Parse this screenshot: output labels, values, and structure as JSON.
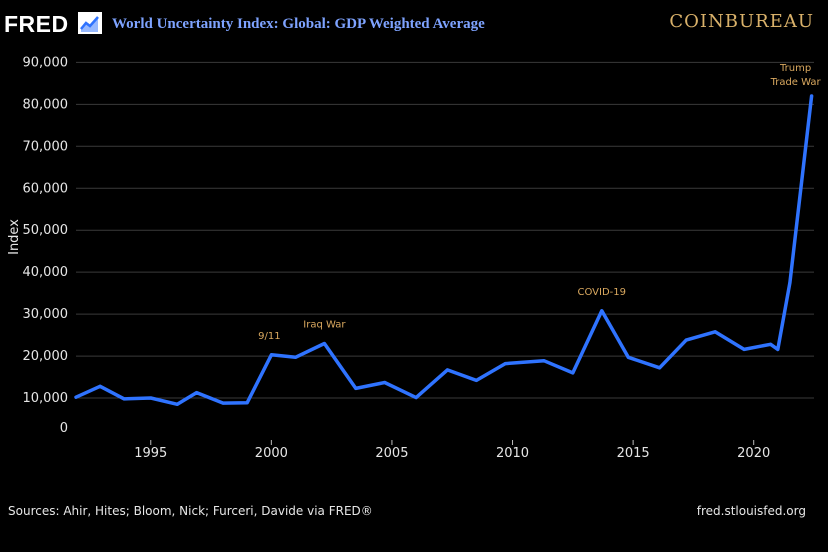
{
  "header": {
    "logo": "FRED",
    "logo_icon": "chart-trend-icon",
    "brand": "COINBUREAU"
  },
  "colors": {
    "background": "#000000",
    "line": "#2f73ff",
    "title": "#7ea3ff",
    "annotation": "#d9a85f",
    "grid": "#3a3a3a"
  },
  "footer": {
    "sources": "Sources: Ahir, Hites; Bloom, Nick; Furceri, Davide via FRED®",
    "url": "fred.stlouisfed.org"
  },
  "chart_data": {
    "type": "line",
    "title": "World Uncertainty Index: Global: GDP Weighted Average",
    "xlabel": "",
    "ylabel": "Index",
    "xlim": [
      1991.9,
      2022.5
    ],
    "ylim": [
      0,
      92000
    ],
    "grid": true,
    "y_ticks": [
      "0",
      "10,000",
      "20,000",
      "30,000",
      "40,000",
      "50,000",
      "60,000",
      "70,000",
      "80,000",
      "90,000"
    ],
    "y_tick_values": [
      0,
      10000,
      20000,
      30000,
      40000,
      50000,
      60000,
      70000,
      80000,
      90000
    ],
    "x_ticks": [
      "1995",
      "2000",
      "2005",
      "2010",
      "2015",
      "2020"
    ],
    "x_tick_values": [
      1995,
      2000,
      2005,
      2010,
      2015,
      2020
    ],
    "series": [
      {
        "x": [
          1991.9,
          1992.9,
          1993.9,
          1995.0,
          1996.1,
          1996.9,
          1998.0,
          1999.0,
          2000.0,
          2001.0,
          2002.2,
          2003.5,
          2004.7,
          2006.0,
          2007.3,
          2008.5,
          2009.7,
          2011.3,
          2012.5,
          2013.7,
          2014.8,
          2016.1,
          2017.2,
          2018.4,
          2019.6,
          2020.7,
          2021.0,
          2021.5,
          2022.4
        ],
        "values": [
          10200,
          12800,
          9800,
          10000,
          8500,
          11300,
          8800,
          8900,
          20300,
          19700,
          23000,
          12300,
          13700,
          10100,
          16700,
          14200,
          18200,
          18900,
          16000,
          30800,
          19700,
          17200,
          23800,
          25800,
          21600,
          22800,
          21600,
          37500,
          82000
        ]
      }
    ],
    "annotations": [
      {
        "text": "9/11",
        "x": 2000.0,
        "y": 20300
      },
      {
        "text": "Iraq War",
        "x": 2002.2,
        "y": 23000
      },
      {
        "text": "COVID-19",
        "x": 2013.7,
        "y": 30800
      },
      {
        "text": "Trump",
        "x": 2022.4,
        "y": 82000
      },
      {
        "text": "Trade War",
        "x": 2022.4,
        "y": 82000
      }
    ]
  }
}
